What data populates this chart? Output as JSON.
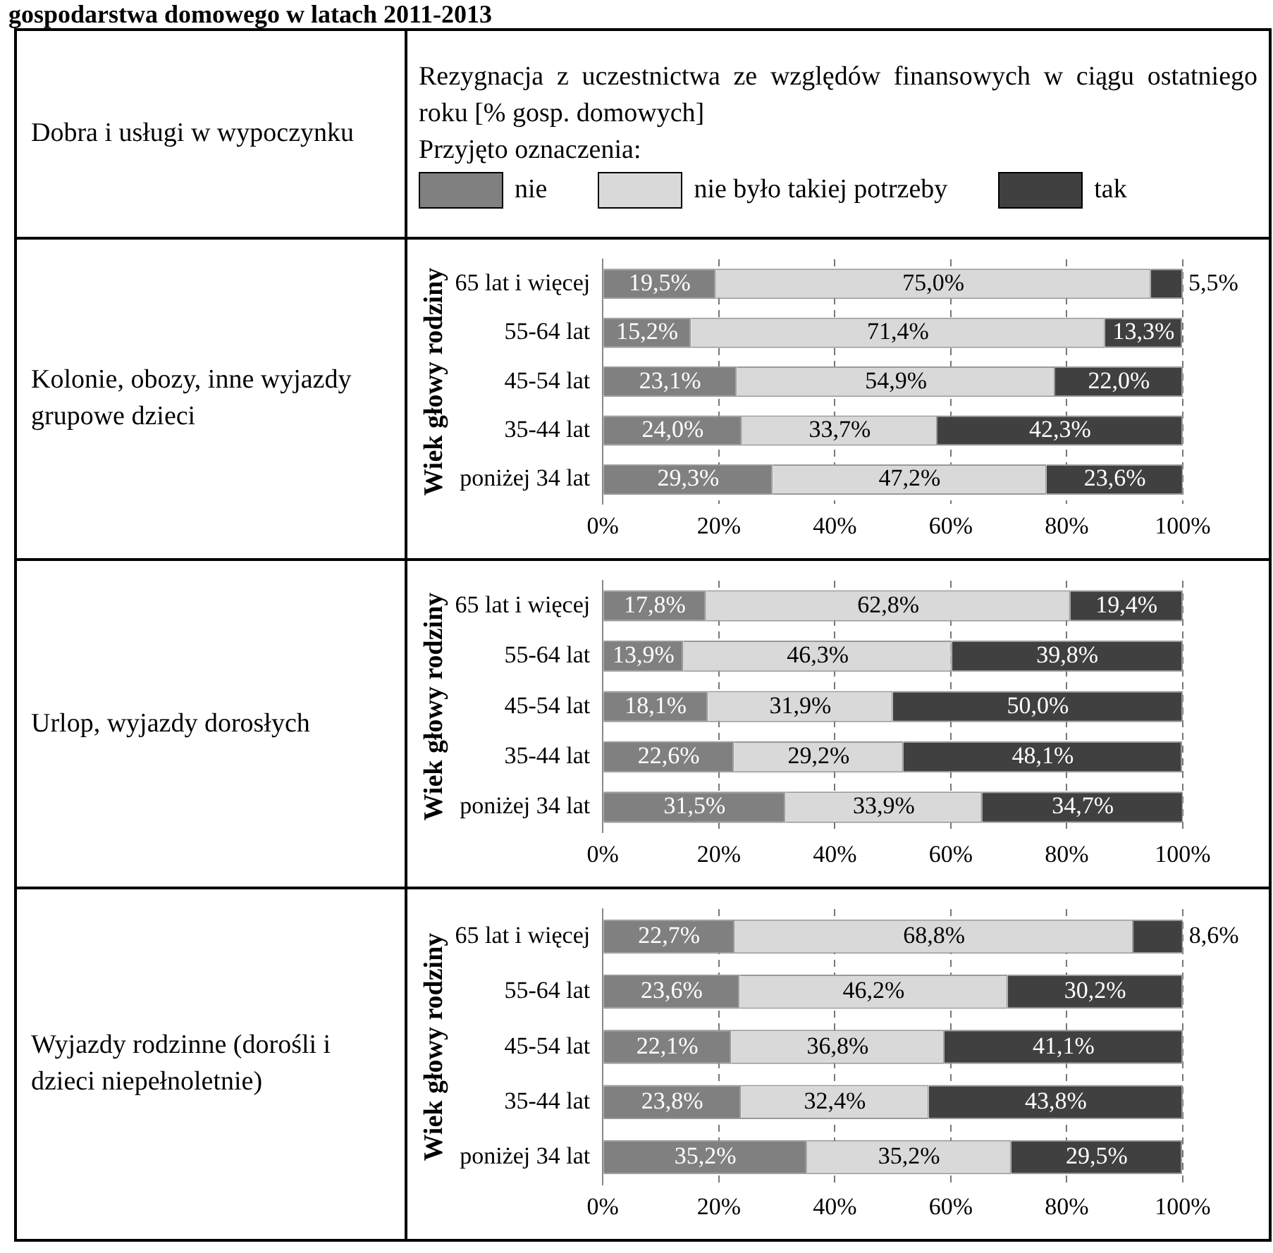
{
  "chart_data": [
    {
      "type": "other",
      "title": "gospodarstwa domowego w latach 2011-2013",
      "annotations": [
        "Dobra i usługi w wypoczynku",
        "Rezygnacja z uczestnictwa ze względów finansowych w ciągu ostatniego roku [% gosp. domowych]",
        "Przyjęto oznaczenia:"
      ]
    },
    {
      "type": "bar",
      "orientation": "horizontal",
      "stacked": true,
      "title": "Kolonie, obozy, inne wyjazdy grupowe dzieci",
      "ylabel": "Wiek głowy rodziny",
      "legend": "top",
      "categories": [
        "65 lat i więcej",
        "55-64 lat",
        "45-54 lat",
        "35-44 lat",
        "poniżej 34 lat"
      ],
      "series": [
        {
          "name": "nie",
          "color": "#808080",
          "values": [
            19.5,
            15.2,
            23.1,
            24.0,
            29.3
          ],
          "value_labels": [
            "19,5%",
            "15,2%",
            "23,1%",
            "24,0%",
            "29,3%"
          ]
        },
        {
          "name": "nie było takiej potrzeby",
          "color": "#d9d9d9",
          "values": [
            75.0,
            71.4,
            54.9,
            33.7,
            47.2
          ],
          "value_labels": [
            "75,0%",
            "71,4%",
            "54,9%",
            "33,7%",
            "47,2%"
          ]
        },
        {
          "name": "tak",
          "color": "#404040",
          "values": [
            5.5,
            13.3,
            22.0,
            42.3,
            23.6
          ],
          "value_labels": [
            "5,5%",
            "13,3%",
            "22,0%",
            "42,3%",
            "23,6%"
          ]
        }
      ],
      "xlim": [
        0,
        100
      ],
      "xticks": [
        {
          "value": 0,
          "label": "0%"
        },
        {
          "value": 20,
          "label": "20%"
        },
        {
          "value": 40,
          "label": "40%"
        },
        {
          "value": 60,
          "label": "60%"
        },
        {
          "value": 80,
          "label": "80%"
        },
        {
          "value": 100,
          "label": "100%"
        }
      ],
      "grid": "x"
    },
    {
      "type": "bar",
      "orientation": "horizontal",
      "stacked": true,
      "title": "Urlop, wyjazdy dorosłych",
      "ylabel": "Wiek głowy rodziny",
      "categories": [
        "65 lat i więcej",
        "55-64 lat",
        "45-54 lat",
        "35-44 lat",
        "poniżej 34 lat"
      ],
      "series": [
        {
          "color": "#808080",
          "values": [
            17.8,
            13.9,
            18.1,
            22.6,
            31.5
          ],
          "value_labels": [
            "17,8%",
            "13,9%",
            "18,1%",
            "22,6%",
            "31,5%"
          ]
        },
        {
          "color": "#d9d9d9",
          "values": [
            62.8,
            46.3,
            31.9,
            29.2,
            33.9
          ],
          "value_labels": [
            "62,8%",
            "46,3%",
            "31,9%",
            "29,2%",
            "33,9%"
          ]
        },
        {
          "color": "#404040",
          "values": [
            19.4,
            39.8,
            50.0,
            48.1,
            34.7
          ],
          "value_labels": [
            "19,4%",
            "39,8%",
            "50,0%",
            "48,1%",
            "34,7%"
          ]
        }
      ],
      "xlim": [
        0,
        100
      ],
      "xticks": [
        {
          "value": 0,
          "label": "0%"
        },
        {
          "value": 20,
          "label": "20%"
        },
        {
          "value": 40,
          "label": "40%"
        },
        {
          "value": 60,
          "label": "60%"
        },
        {
          "value": 80,
          "label": "80%"
        },
        {
          "value": 100,
          "label": "100%"
        }
      ],
      "grid": "x"
    },
    {
      "type": "bar",
      "orientation": "horizontal",
      "stacked": true,
      "title": "Wyjazdy rodzinne (dorośli i dzieci niepełnoletnie)",
      "ylabel": "Wiek głowy rodziny",
      "categories": [
        "65 lat i więcej",
        "55-64 lat",
        "45-54 lat",
        "35-44 lat",
        "poniżej 34 lat"
      ],
      "series": [
        {
          "color": "#808080",
          "values": [
            22.7,
            23.6,
            22.1,
            23.8,
            35.2
          ],
          "value_labels": [
            "22,7%",
            "23,6%",
            "22,1%",
            "23,8%",
            "35,2%"
          ]
        },
        {
          "color": "#d9d9d9",
          "values": [
            68.8,
            46.2,
            36.8,
            32.4,
            35.2
          ],
          "value_labels": [
            "68,8%",
            "46,2%",
            "36,8%",
            "32,4%",
            "35,2%"
          ]
        },
        {
          "color": "#404040",
          "values": [
            8.6,
            30.2,
            41.1,
            43.8,
            29.5
          ],
          "value_labels": [
            "8,6%",
            "30,2%",
            "41,1%",
            "43,8%",
            "29,5%"
          ]
        }
      ],
      "xlim": [
        0,
        100
      ],
      "xticks": [
        {
          "value": 0,
          "label": "0%"
        },
        {
          "value": 20,
          "label": "20%"
        },
        {
          "value": 40,
          "label": "40%"
        },
        {
          "value": 60,
          "label": "60%"
        },
        {
          "value": 80,
          "label": "80%"
        },
        {
          "value": 100,
          "label": "100%"
        }
      ],
      "grid": "x"
    }
  ]
}
